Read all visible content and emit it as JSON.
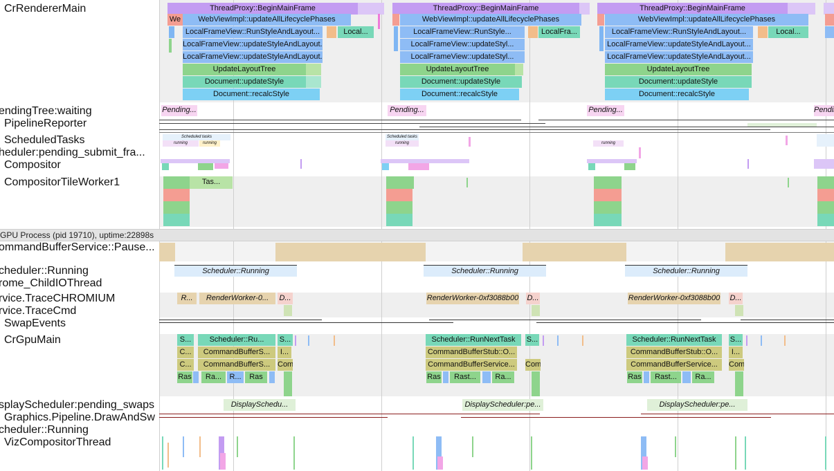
{
  "tracks": {
    "renderer_main": "CrRendererMain",
    "pending_tree": "endingTree:waiting",
    "pipeline_reporter": "PipelineReporter",
    "scheduled_tasks": "ScheduledTasks",
    "scheduler_pending_submit": "heduler:pending_submit_fra...",
    "compositor": "Compositor",
    "tile_worker": "CompositorTileWorker1",
    "gpu_process": "GPU Process (pid 19710), uptime:22898s",
    "cmd_buffer_pause": "ommandBufferService::Pause...",
    "scheduler_running": "cheduler::Running",
    "child_io": "rome_ChildIOThread",
    "trace_chromium": "rvice.TraceCHROMIUM",
    "trace_cmd": "rvice.TraceCmd",
    "swap_events": "SwapEvents",
    "gpu_main": "CrGpuMain",
    "display_scheduler": "splayScheduler:pending_swaps",
    "graphics_pipeline": "Graphics.Pipeline.DrawAndSw",
    "scheduler_running2": "cheduler::Running",
    "viz_compositor": "VizCompositorThread"
  },
  "slices": {
    "begin_main_frame": "ThreadProxy::BeginMainFrame",
    "we": "We",
    "webview_update": "WebViewImpl::updateAllLifecyclePhases",
    "lfv_run_layout": "LocalFrameView::RunStyleAndLayout...",
    "local_short": "Local...",
    "lfv_update_style": "LocalFrameView::updateStyleAndLayout...",
    "update_layout_tree": "UpdateLayoutTree",
    "doc_update_style": "Document::updateStyle",
    "doc_recalc_style": "Document::recalcStyle",
    "lfv_run_style_short": "LocalFrameView::RunStyle...",
    "local_fra": "LocalFra...",
    "lfv_update_styl_short": "LocalFrameView::updateStyl...",
    "pending": "Pending...",
    "scheduled_tasks": "Scheduled tasks",
    "running": "running",
    "tas": "Tas...",
    "scheduler_running": "Scheduler::Running",
    "r_short": "R...",
    "render_worker_0": "RenderWorker-0...",
    "d_short": "D...",
    "render_worker_full": "RenderWorker-0xf3088b00",
    "s_short": "S...",
    "scheduler_ru": "Scheduler::Ru...",
    "scheduler_run_next": "Scheduler::RunNextTask",
    "c_short": "C...",
    "cmd_buffer_s": "CommandBufferS...",
    "cmd_buffer_stub": "CommandBufferStub::O...",
    "cmd_buffer_service": "CommandBufferService...",
    "i_short": "I...",
    "com": "Com",
    "ras": "Ras",
    "ra_short": "Ra...",
    "rast_short": "Rast...",
    "display_schedu": "DisplaySchedu...",
    "display_scheduler_pe": "DisplayScheduler:pe..."
  },
  "colors": {
    "purple": "#c39cf2",
    "purple_light": "#dcc6f7",
    "blue": "#8ebcf5",
    "blue_mid": "#7fb6f3",
    "cyan": "#7dd0f4",
    "green": "#8ed48c",
    "green_light": "#b8e3a6",
    "teal": "#78d8b8",
    "salmon": "#f49d92",
    "orange": "#f2bd8a",
    "tan": "#e6d3ae",
    "olive": "#cdca7e",
    "pink": "#f2a6e6",
    "magenta": "#ee7bd9",
    "lavender": "#d7ddf8",
    "lightblue": "#dcecfb",
    "gray_bg": "#efefef"
  }
}
